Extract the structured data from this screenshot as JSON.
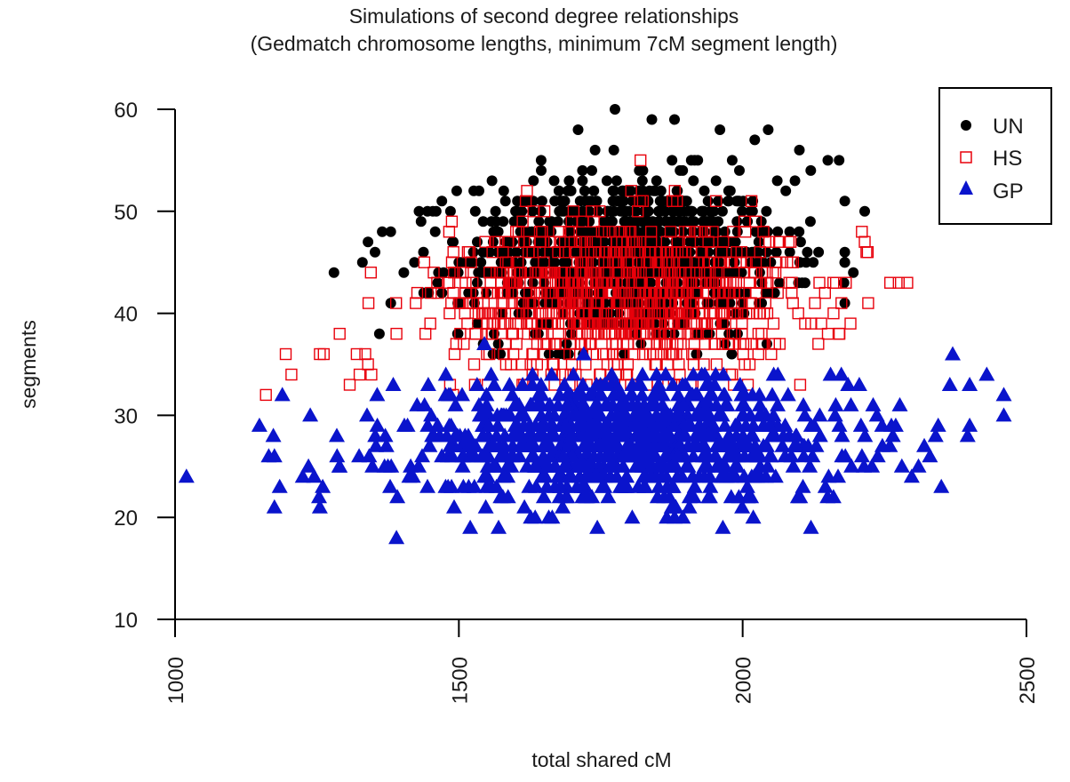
{
  "chart_data": {
    "type": "scatter",
    "title": "Simulations of second degree relationships",
    "subtitle": "(Gedmatch chromosome lengths, minimum 7cM segment length)",
    "xlabel": "total shared cM",
    "ylabel": "segments",
    "xlim": [
      1000,
      2500
    ],
    "ylim": [
      10,
      60
    ],
    "x_ticks": [
      1000,
      1500,
      2000,
      2500
    ],
    "y_ticks": [
      10,
      20,
      30,
      40,
      50,
      60
    ],
    "x_tick_labels": [
      "1000",
      "1500",
      "2000",
      "2500"
    ],
    "y_tick_labels": [
      "10",
      "20",
      "30",
      "40",
      "50",
      "60"
    ],
    "x_tick_rotation": 90,
    "grid": false,
    "legend_position": "top-right",
    "legend": [
      {
        "label": "UN",
        "marker": "filled-circle",
        "color": "#000000"
      },
      {
        "label": "HS",
        "marker": "open-square",
        "color": "#e8000b"
      },
      {
        "label": "GP",
        "marker": "filled-triangle",
        "color": "#0a14cc"
      }
    ],
    "series": [
      {
        "name": "UN",
        "marker": "filled-circle",
        "color": "#000000",
        "n_points": 1000,
        "distribution": {
          "x_mean": 1790,
          "x_sd": 140,
          "y_mean": 45.5,
          "y_sd": 4.0,
          "x_range": [
            1280,
            2220
          ],
          "y_range": [
            35,
            60
          ]
        },
        "notable_points": [
          {
            "x": 1775,
            "y": 60
          },
          {
            "x": 1840,
            "y": 59
          },
          {
            "x": 1880,
            "y": 59
          },
          {
            "x": 1710,
            "y": 58
          },
          {
            "x": 1960,
            "y": 58
          },
          {
            "x": 2045,
            "y": 58
          },
          {
            "x": 1740,
            "y": 56
          },
          {
            "x": 2100,
            "y": 56
          },
          {
            "x": 2150,
            "y": 55
          },
          {
            "x": 2170,
            "y": 55
          },
          {
            "x": 2120,
            "y": 54
          },
          {
            "x": 1280,
            "y": 44
          },
          {
            "x": 1330,
            "y": 45
          },
          {
            "x": 1365,
            "y": 48
          },
          {
            "x": 1380,
            "y": 48
          },
          {
            "x": 1380,
            "y": 41
          },
          {
            "x": 1360,
            "y": 38
          },
          {
            "x": 2195,
            "y": 44
          },
          {
            "x": 2215,
            "y": 50
          },
          {
            "x": 2180,
            "y": 46
          },
          {
            "x": 2110,
            "y": 43
          },
          {
            "x": 1560,
            "y": 36
          }
        ]
      },
      {
        "name": "HS",
        "marker": "open-square",
        "color": "#e8000b",
        "n_points": 1000,
        "distribution": {
          "x_mean": 1790,
          "x_sd": 150,
          "y_mean": 41.5,
          "y_sd": 3.8,
          "x_range": [
            1160,
            2300
          ],
          "y_range": [
            32,
            55
          ]
        },
        "notable_points": [
          {
            "x": 1160,
            "y": 32
          },
          {
            "x": 1195,
            "y": 36
          },
          {
            "x": 1205,
            "y": 34
          },
          {
            "x": 1255,
            "y": 36
          },
          {
            "x": 1262,
            "y": 36
          },
          {
            "x": 1290,
            "y": 38
          },
          {
            "x": 1320,
            "y": 36
          },
          {
            "x": 1325,
            "y": 34
          },
          {
            "x": 1335,
            "y": 36
          },
          {
            "x": 1340,
            "y": 35
          },
          {
            "x": 1345,
            "y": 44
          },
          {
            "x": 1390,
            "y": 38
          },
          {
            "x": 1820,
            "y": 55
          },
          {
            "x": 2275,
            "y": 43
          },
          {
            "x": 2290,
            "y": 43
          },
          {
            "x": 2210,
            "y": 48
          },
          {
            "x": 2215,
            "y": 47
          },
          {
            "x": 2218,
            "y": 46
          },
          {
            "x": 2190,
            "y": 39
          },
          {
            "x": 2150,
            "y": 38
          },
          {
            "x": 2170,
            "y": 38
          },
          {
            "x": 2160,
            "y": 40
          },
          {
            "x": 2145,
            "y": 42
          },
          {
            "x": 1490,
            "y": 32
          }
        ]
      },
      {
        "name": "GP",
        "marker": "filled-triangle",
        "color": "#0a14cc",
        "n_points": 1000,
        "distribution": {
          "x_mean": 1790,
          "x_sd": 200,
          "y_mean": 27.5,
          "y_sd": 2.9,
          "x_range": [
            1020,
            2470
          ],
          "y_range": [
            18,
            37
          ]
        },
        "notable_points": [
          {
            "x": 1020,
            "y": 24
          },
          {
            "x": 1165,
            "y": 26
          },
          {
            "x": 1175,
            "y": 26
          },
          {
            "x": 1175,
            "y": 21
          },
          {
            "x": 1225,
            "y": 24
          },
          {
            "x": 1235,
            "y": 25
          },
          {
            "x": 1245,
            "y": 24
          },
          {
            "x": 1255,
            "y": 21
          },
          {
            "x": 1260,
            "y": 23
          },
          {
            "x": 1285,
            "y": 28
          },
          {
            "x": 1290,
            "y": 25
          },
          {
            "x": 1390,
            "y": 18
          },
          {
            "x": 1520,
            "y": 19
          },
          {
            "x": 1570,
            "y": 19
          },
          {
            "x": 1880,
            "y": 20
          },
          {
            "x": 2160,
            "y": 22
          },
          {
            "x": 2350,
            "y": 23
          },
          {
            "x": 2370,
            "y": 36
          },
          {
            "x": 2365,
            "y": 33
          },
          {
            "x": 2400,
            "y": 33
          },
          {
            "x": 2400,
            "y": 29
          },
          {
            "x": 2460,
            "y": 32
          },
          {
            "x": 2460,
            "y": 30
          },
          {
            "x": 2340,
            "y": 28
          },
          {
            "x": 2320,
            "y": 27
          },
          {
            "x": 2330,
            "y": 26
          },
          {
            "x": 1545,
            "y": 37
          },
          {
            "x": 1720,
            "y": 36
          }
        ]
      }
    ]
  }
}
